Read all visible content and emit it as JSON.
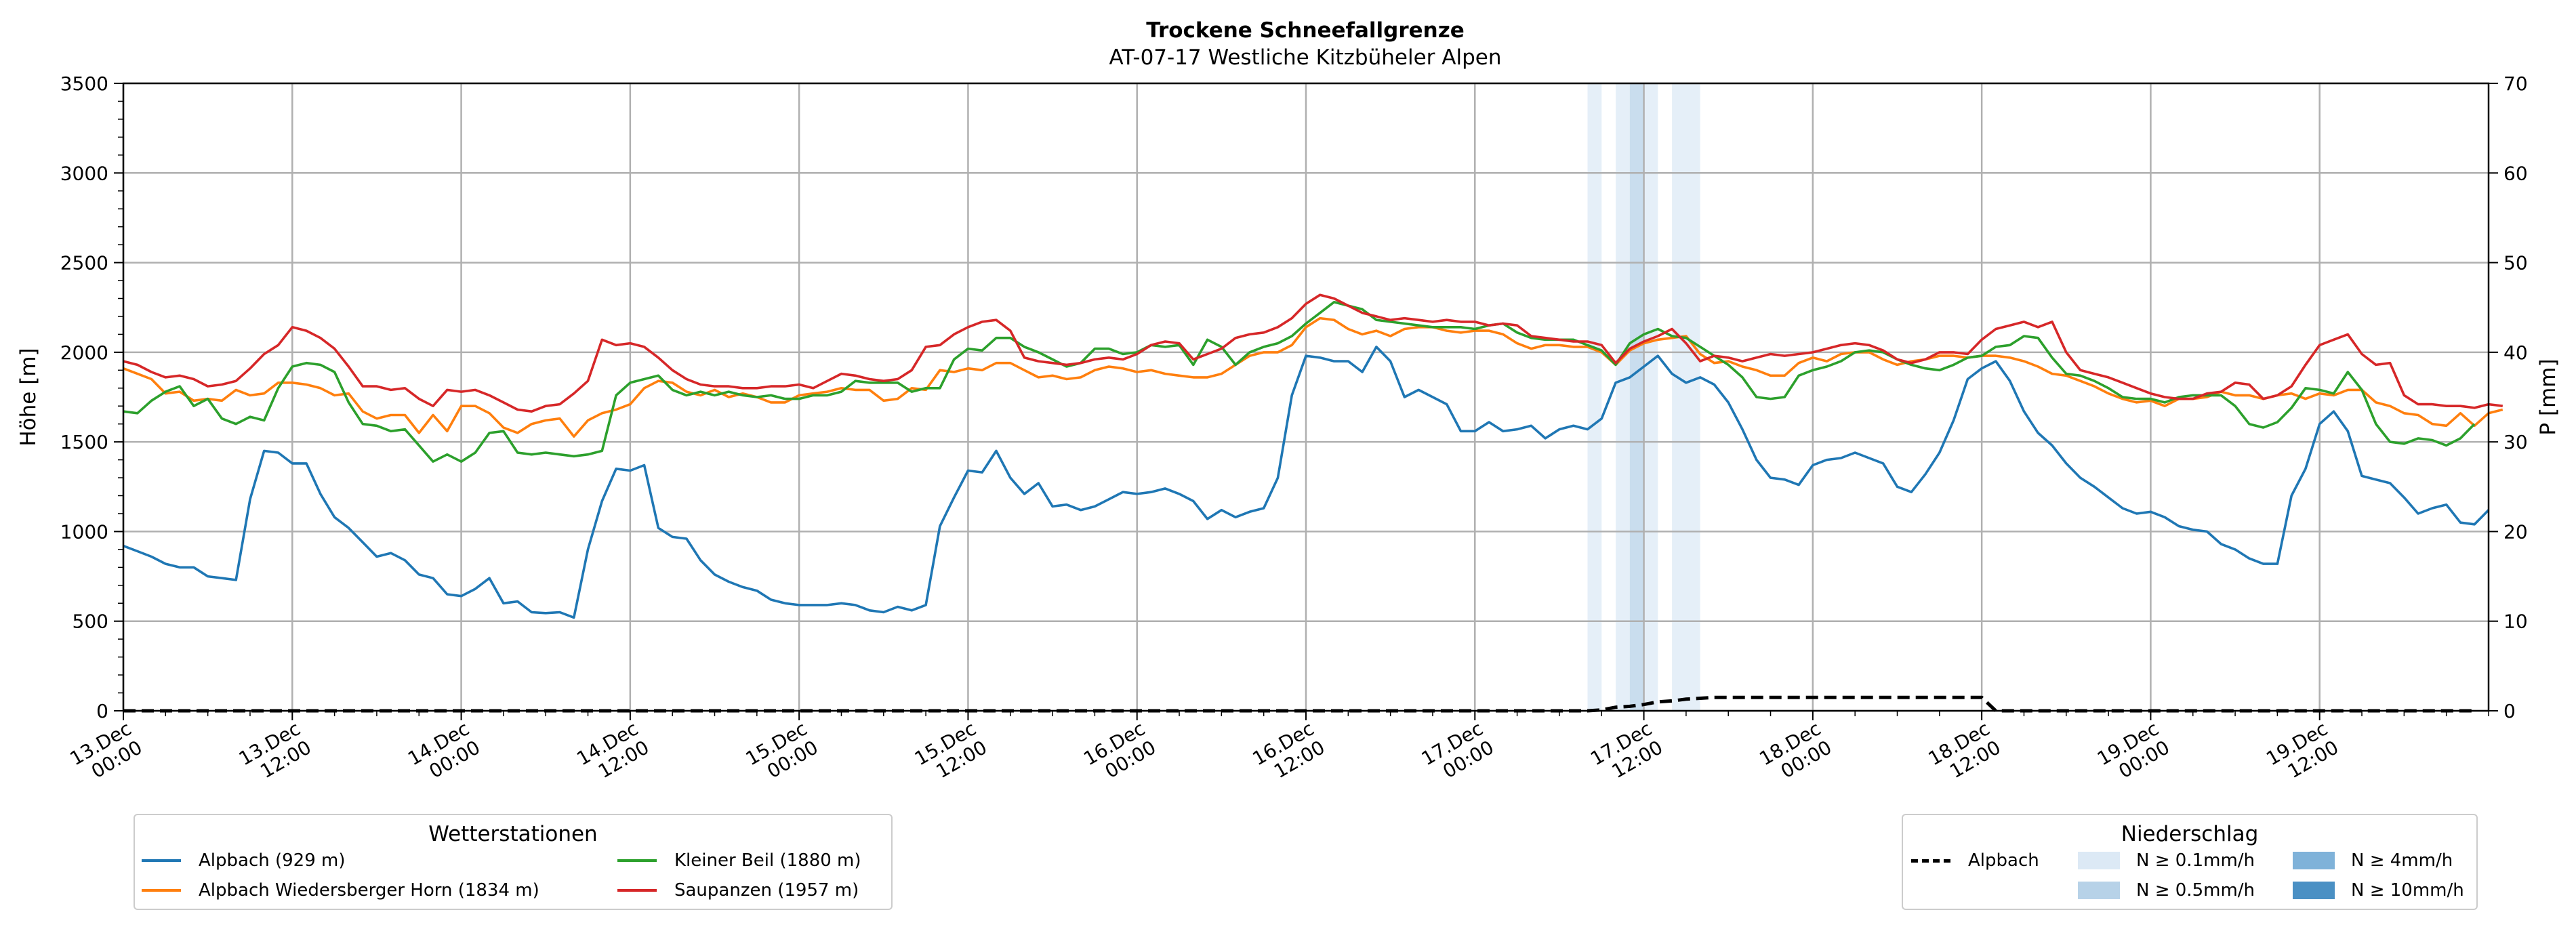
{
  "chart_data": {
    "type": "line",
    "title": "Trockene Schneefallgrenze",
    "subtitle": "AT-07-17 Westliche Kitzbüheler Alpen",
    "ylabel": "Höhe [m]",
    "y2label": "P [mm]",
    "ylim": [
      0,
      3500
    ],
    "y2lim": [
      0,
      70
    ],
    "yticks": [
      "0",
      "500",
      "1000",
      "1500",
      "2000",
      "2500",
      "3000",
      "3500"
    ],
    "y2ticks": [
      "0",
      "10",
      "20",
      "30",
      "40",
      "50",
      "60",
      "70"
    ],
    "x_start": "13.Dec 00:00",
    "x_step_hours": 1,
    "xlim_hours": [
      0,
      167
    ],
    "xtick_labels": [
      {
        "hour": 0,
        "l1": "13.Dec",
        "l2": "00:00"
      },
      {
        "hour": 12,
        "l1": "13.Dec",
        "l2": "12:00"
      },
      {
        "hour": 24,
        "l1": "14.Dec",
        "l2": "00:00"
      },
      {
        "hour": 36,
        "l1": "14.Dec",
        "l2": "12:00"
      },
      {
        "hour": 48,
        "l1": "15.Dec",
        "l2": "00:00"
      },
      {
        "hour": 60,
        "l1": "15.Dec",
        "l2": "12:00"
      },
      {
        "hour": 72,
        "l1": "16.Dec",
        "l2": "00:00"
      },
      {
        "hour": 84,
        "l1": "16.Dec",
        "l2": "12:00"
      },
      {
        "hour": 96,
        "l1": "17.Dec",
        "l2": "00:00"
      },
      {
        "hour": 108,
        "l1": "17.Dec",
        "l2": "12:00"
      },
      {
        "hour": 120,
        "l1": "18.Dec",
        "l2": "00:00"
      },
      {
        "hour": 132,
        "l1": "18.Dec",
        "l2": "12:00"
      },
      {
        "hour": 144,
        "l1": "19.Dec",
        "l2": "00:00"
      },
      {
        "hour": 156,
        "l1": "19.Dec",
        "l2": "12:00"
      }
    ],
    "grid": true,
    "series": [
      {
        "name": "Alpbach (929 m)",
        "color": "#1f77b4",
        "values": [
          920,
          890,
          860,
          820,
          800,
          800,
          750,
          740,
          730,
          1180,
          1450,
          1440,
          1380,
          1380,
          1210,
          1080,
          1020,
          940,
          860,
          880,
          840,
          760,
          740,
          650,
          640,
          680,
          740,
          600,
          610,
          550,
          545,
          550,
          520,
          900,
          1170,
          1350,
          1340,
          1370,
          1020,
          970,
          960,
          840,
          760,
          720,
          690,
          670,
          620,
          600,
          590,
          590,
          590,
          600,
          590,
          560,
          550,
          580,
          560,
          590,
          1030,
          1190,
          1340,
          1330,
          1450,
          1300,
          1210,
          1270,
          1140,
          1150,
          1120,
          1140,
          1180,
          1220,
          1210,
          1220,
          1240,
          1210,
          1170,
          1070,
          1120,
          1080,
          1110,
          1130,
          1300,
          1760,
          1980,
          1970,
          1950,
          1950,
          1890,
          2030,
          1950,
          1750,
          1790,
          1750,
          1710,
          1560,
          1560,
          1610,
          1560,
          1570,
          1590,
          1520,
          1570,
          1590,
          1570,
          1630,
          1830,
          1860,
          1920,
          1980,
          1880,
          1830,
          1860,
          1820,
          1720,
          1570,
          1400,
          1300,
          1290,
          1260,
          1370,
          1400,
          1410,
          1440,
          1410,
          1380,
          1250,
          1220,
          1320,
          1440,
          1620,
          1850,
          1910,
          1950,
          1840,
          1670,
          1550,
          1480,
          1380,
          1300,
          1250,
          1190,
          1130,
          1100,
          1110,
          1080,
          1030,
          1010,
          1000,
          930,
          900,
          850,
          820,
          820,
          1200,
          1350,
          1600,
          1670,
          1560,
          1310,
          1290,
          1270,
          1190,
          1100,
          1130,
          1150,
          1050,
          1040,
          1120
        ]
      },
      {
        "name": "Alpbach Wiedersberger Horn (1834 m)",
        "color": "#ff7f0e",
        "values": [
          1910,
          1880,
          1850,
          1770,
          1780,
          1730,
          1740,
          1730,
          1790,
          1760,
          1770,
          1830,
          1830,
          1820,
          1800,
          1760,
          1770,
          1670,
          1630,
          1650,
          1650,
          1550,
          1650,
          1560,
          1700,
          1700,
          1660,
          1580,
          1550,
          1600,
          1620,
          1630,
          1530,
          1620,
          1660,
          1680,
          1710,
          1800,
          1840,
          1830,
          1780,
          1760,
          1790,
          1750,
          1770,
          1750,
          1720,
          1720,
          1760,
          1770,
          1780,
          1800,
          1790,
          1790,
          1730,
          1740,
          1800,
          1790,
          1900,
          1890,
          1910,
          1900,
          1940,
          1940,
          1900,
          1860,
          1870,
          1850,
          1860,
          1900,
          1920,
          1910,
          1890,
          1900,
          1880,
          1870,
          1860,
          1860,
          1880,
          1930,
          1980,
          2000,
          2000,
          2040,
          2140,
          2190,
          2180,
          2130,
          2100,
          2120,
          2090,
          2130,
          2140,
          2140,
          2120,
          2110,
          2120,
          2120,
          2100,
          2050,
          2020,
          2040,
          2040,
          2030,
          2030,
          2000,
          1930,
          2010,
          2050,
          2070,
          2080,
          2090,
          1990,
          1940,
          1950,
          1920,
          1900,
          1870,
          1870,
          1940,
          1970,
          1950,
          1990,
          2000,
          2000,
          1960,
          1930,
          1950,
          1960,
          1980,
          1980,
          1970,
          1980,
          1980,
          1970,
          1950,
          1920,
          1880,
          1870,
          1840,
          1810,
          1770,
          1740,
          1720,
          1730,
          1700,
          1740,
          1740,
          1750,
          1780,
          1760,
          1760,
          1740,
          1760,
          1770,
          1740,
          1770,
          1760,
          1790,
          1790,
          1720,
          1700,
          1660,
          1650,
          1600,
          1590,
          1660,
          1590,
          1660,
          1680
        ]
      },
      {
        "name": "Kleiner Beil (1880 m)",
        "color": "#2ca02c",
        "values": [
          1670,
          1660,
          1730,
          1780,
          1810,
          1700,
          1740,
          1630,
          1600,
          1640,
          1620,
          1800,
          1920,
          1940,
          1930,
          1890,
          1720,
          1600,
          1590,
          1560,
          1570,
          1480,
          1390,
          1430,
          1390,
          1440,
          1550,
          1560,
          1440,
          1430,
          1440,
          1430,
          1420,
          1430,
          1450,
          1760,
          1830,
          1850,
          1870,
          1790,
          1760,
          1780,
          1760,
          1780,
          1760,
          1750,
          1760,
          1740,
          1740,
          1760,
          1760,
          1780,
          1840,
          1830,
          1830,
          1830,
          1780,
          1800,
          1800,
          1960,
          2020,
          2010,
          2080,
          2080,
          2030,
          2000,
          1960,
          1920,
          1940,
          2020,
          2020,
          1990,
          2000,
          2040,
          2030,
          2040,
          1930,
          2070,
          2030,
          1930,
          2000,
          2030,
          2050,
          2090,
          2160,
          2220,
          2280,
          2260,
          2240,
          2180,
          2170,
          2160,
          2150,
          2140,
          2140,
          2140,
          2130,
          2150,
          2160,
          2110,
          2080,
          2070,
          2070,
          2070,
          2040,
          2010,
          1930,
          2050,
          2100,
          2130,
          2090,
          2080,
          2030,
          1980,
          1930,
          1860,
          1750,
          1740,
          1750,
          1870,
          1900,
          1920,
          1950,
          2000,
          2010,
          2000,
          1960,
          1930,
          1910,
          1900,
          1930,
          1970,
          1980,
          2030,
          2040,
          2090,
          2080,
          1970,
          1880,
          1870,
          1840,
          1800,
          1750,
          1740,
          1740,
          1720,
          1750,
          1760,
          1760,
          1760,
          1700,
          1600,
          1580,
          1610,
          1690,
          1800,
          1790,
          1770,
          1890,
          1790,
          1600,
          1500,
          1490,
          1520,
          1510,
          1480,
          1520,
          1600
        ]
      },
      {
        "name": "Saupanzen (1957 m)",
        "color": "#d62728",
        "values": [
          1950,
          1930,
          1890,
          1860,
          1870,
          1850,
          1810,
          1820,
          1840,
          1910,
          1990,
          2040,
          2140,
          2120,
          2080,
          2020,
          1920,
          1810,
          1810,
          1790,
          1800,
          1740,
          1700,
          1790,
          1780,
          1790,
          1760,
          1720,
          1680,
          1670,
          1700,
          1710,
          1770,
          1840,
          2070,
          2040,
          2050,
          2030,
          1970,
          1900,
          1850,
          1820,
          1810,
          1810,
          1800,
          1800,
          1810,
          1810,
          1820,
          1800,
          1840,
          1880,
          1870,
          1850,
          1840,
          1850,
          1900,
          2030,
          2040,
          2100,
          2140,
          2170,
          2180,
          2120,
          1970,
          1950,
          1940,
          1930,
          1940,
          1960,
          1970,
          1960,
          1990,
          2040,
          2060,
          2050,
          1960,
          1990,
          2020,
          2080,
          2100,
          2110,
          2140,
          2190,
          2270,
          2320,
          2300,
          2260,
          2220,
          2200,
          2180,
          2190,
          2180,
          2170,
          2180,
          2170,
          2170,
          2150,
          2160,
          2150,
          2090,
          2080,
          2070,
          2060,
          2060,
          2040,
          1940,
          2020,
          2060,
          2090,
          2130,
          2050,
          1950,
          1980,
          1970,
          1950,
          1970,
          1990,
          1980,
          1990,
          2000,
          2020,
          2040,
          2050,
          2040,
          2010,
          1960,
          1940,
          1960,
          2000,
          2000,
          1990,
          2070,
          2130,
          2150,
          2170,
          2140,
          2170,
          2000,
          1900,
          1880,
          1860,
          1830,
          1800,
          1770,
          1750,
          1740,
          1740,
          1770,
          1780,
          1830,
          1820,
          1740,
          1760,
          1810,
          1930,
          2040,
          2070,
          2100,
          1990,
          1930,
          1940,
          1760,
          1710,
          1710,
          1700,
          1700,
          1690,
          1710,
          1700
        ]
      }
    ],
    "precip_series": [
      {
        "name": "Alpbach",
        "color": "#000000",
        "values": [
          0,
          0,
          0,
          0,
          0,
          0,
          0,
          0,
          0,
          0,
          0,
          0,
          0,
          0,
          0,
          0,
          0,
          0,
          0,
          0,
          0,
          0,
          0,
          0,
          0,
          0,
          0,
          0,
          0,
          0,
          0,
          0,
          0,
          0,
          0,
          0,
          0,
          0,
          0,
          0,
          0,
          0,
          0,
          0,
          0,
          0,
          0,
          0,
          0,
          0,
          0,
          0,
          0,
          0,
          0,
          0,
          0,
          0,
          0,
          0,
          0,
          0,
          0,
          0,
          0,
          0,
          0,
          0,
          0,
          0,
          0,
          0,
          0,
          0,
          0,
          0,
          0,
          0,
          0,
          0,
          0,
          0,
          0,
          0,
          0,
          0,
          0,
          0,
          0,
          0,
          0,
          0,
          0,
          0,
          0,
          0,
          0,
          0,
          0,
          0,
          0,
          0,
          0,
          0,
          0,
          0.1,
          0.4,
          0.5,
          0.7,
          1.0,
          1.1,
          1.3,
          1.4,
          1.5,
          1.5,
          1.5,
          1.5,
          1.5,
          1.5,
          1.5,
          1.5,
          1.5,
          1.5,
          1.5,
          1.5,
          1.5,
          1.5,
          1.5,
          1.5,
          1.5,
          1.5,
          1.5,
          1.5,
          0,
          0,
          0,
          0,
          0,
          0,
          0,
          0,
          0,
          0,
          0,
          0,
          0,
          0,
          0,
          0,
          0,
          0,
          0,
          0,
          0,
          0,
          0,
          0,
          0,
          0,
          0,
          0,
          0,
          0,
          0,
          0,
          0,
          0,
          0
        ]
      }
    ],
    "precip_bands": [
      {
        "from_hour": 104,
        "to_hour": 105,
        "level": "0.1"
      },
      {
        "from_hour": 106,
        "to_hour": 107,
        "level": "0.1"
      },
      {
        "from_hour": 107,
        "to_hour": 108,
        "level": "0.5"
      },
      {
        "from_hour": 108,
        "to_hour": 109,
        "level": "0.1"
      },
      {
        "from_hour": 110,
        "to_hour": 112,
        "level": "0.1"
      }
    ],
    "legend_left": {
      "title": "Wetterstationen",
      "position": "bottom-left"
    },
    "legend_right": {
      "title": "Niederschlag",
      "position": "bottom-right",
      "line_label": "Alpbach",
      "levels": [
        {
          "key": "0.1",
          "label": "N ≥ 0.1mm/h",
          "color": "#dce9f5"
        },
        {
          "key": "0.5",
          "label": "N ≥ 0.5mm/h",
          "color": "#b7d2e8"
        },
        {
          "key": "4",
          "label": "N ≥ 4mm/h",
          "color": "#7fb2d9"
        },
        {
          "key": "10",
          "label": "N ≥ 10mm/h",
          "color": "#4a90c4"
        }
      ]
    }
  }
}
